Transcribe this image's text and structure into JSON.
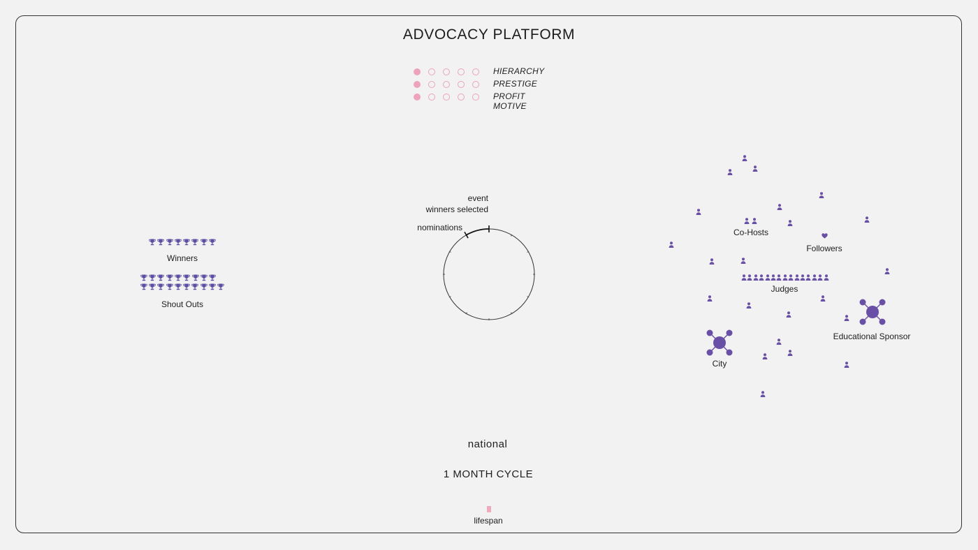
{
  "title": "ADVOCACY PLATFORM",
  "ratings": [
    {
      "label": "HIERARCHY",
      "value": 1,
      "max": 5
    },
    {
      "label": "PRESTIGE",
      "value": 1,
      "max": 5
    },
    {
      "label": "PROFIT MOTIVE",
      "value": 1,
      "max": 5
    }
  ],
  "awards": {
    "winners": {
      "label": "Winners",
      "count": 8
    },
    "shout_outs": {
      "label": "Shout Outs",
      "count": 19
    }
  },
  "cycle": {
    "event_label": "event",
    "winners_label": "winners selected",
    "nominations_label": "nominations"
  },
  "network": {
    "cohosts": {
      "label": "Co-Hosts",
      "count": 2
    },
    "followers": {
      "label": "Followers"
    },
    "judges": {
      "label": "Judges",
      "count": 15
    },
    "city": {
      "label": "City"
    },
    "educational_sponsor": {
      "label": "Educational Sponsor"
    }
  },
  "scope": "national",
  "cycle_length": "1 MONTH CYCLE",
  "lifespan": {
    "label": "lifespan"
  },
  "colors": {
    "rating": "#eda3bb",
    "people": "#6a4fa6",
    "trophy": "#5e4ea3",
    "lifespan": "#f1a9bd",
    "frame": "#333333"
  }
}
